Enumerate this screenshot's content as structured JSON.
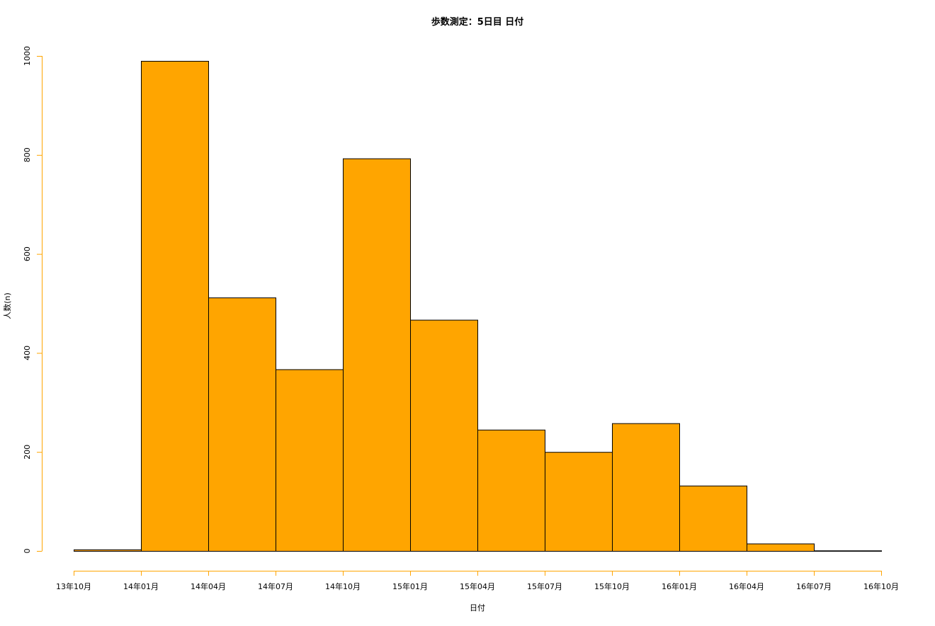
{
  "chart_data": {
    "type": "bar",
    "title": "歩数測定：5日目 日付",
    "xlabel": "日付",
    "ylabel": "人数(n)",
    "ylim": [
      0,
      1000
    ],
    "y_ticks": [
      0,
      200,
      400,
      600,
      800,
      1000
    ],
    "x_tick_labels": [
      "13年10月",
      "14年01月",
      "14年04月",
      "14年07月",
      "14年10月",
      "15年01月",
      "15年04月",
      "15年07月",
      "15年10月",
      "16年01月",
      "16年04月",
      "16年07月",
      "16年10月"
    ],
    "bins": [
      {
        "start": "13年10月",
        "end": "14年01月",
        "value": 3
      },
      {
        "start": "14年01月",
        "end": "14年04月",
        "value": 990
      },
      {
        "start": "14年04月",
        "end": "14年07月",
        "value": 512
      },
      {
        "start": "14年07月",
        "end": "14年10月",
        "value": 367
      },
      {
        "start": "14年10月",
        "end": "15年01月",
        "value": 793
      },
      {
        "start": "15年01月",
        "end": "15年04月",
        "value": 467
      },
      {
        "start": "15年04月",
        "end": "15年07月",
        "value": 245
      },
      {
        "start": "15年07月",
        "end": "15年10月",
        "value": 200
      },
      {
        "start": "15年10月",
        "end": "16年01月",
        "value": 258
      },
      {
        "start": "16年01月",
        "end": "16年04月",
        "value": 132
      },
      {
        "start": "16年04月",
        "end": "16年07月",
        "value": 15
      },
      {
        "start": "16年07月",
        "end": "16年10月",
        "value": 1
      }
    ],
    "bar_color": "#FFA500",
    "bar_border_color": "#000000",
    "axis_color": "#FFA500",
    "grid": false,
    "legend": "none"
  }
}
